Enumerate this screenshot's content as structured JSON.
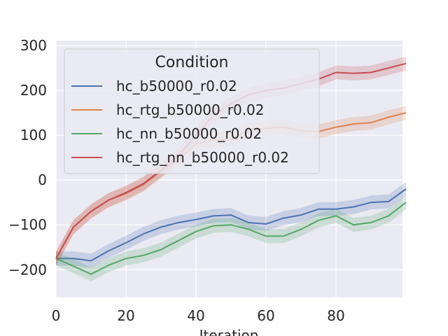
{
  "chart_data": {
    "type": "line",
    "title": "",
    "xlabel": "Iteration",
    "ylabel": "",
    "xlim": [
      0,
      99
    ],
    "ylim": [
      -262,
      311
    ],
    "xticks": [
      0,
      20,
      40,
      60,
      80
    ],
    "yticks": [
      -200,
      -100,
      0,
      100,
      200,
      300
    ],
    "grid": true,
    "legend": {
      "title": "Condition",
      "placement": "upper-left"
    },
    "x_step": 5,
    "series": [
      {
        "name": "hc_b50000_r0.02",
        "color": "#4c72b0",
        "values": [
          -175,
          -175,
          -180,
          -158,
          -140,
          -120,
          -105,
          -95,
          -88,
          -80,
          -78,
          -95,
          -98,
          -85,
          -78,
          -65,
          -65,
          -60,
          -50,
          -48,
          -20
        ]
      },
      {
        "name": "hc_rtg_b50000_r0.02",
        "color": "#dd8452",
        "values": [
          -175,
          -105,
          -70,
          -45,
          -30,
          -10,
          20,
          45,
          80,
          90,
          90,
          110,
          115,
          118,
          110,
          108,
          118,
          125,
          128,
          140,
          150
        ]
      },
      {
        "name": "hc_nn_b50000_r0.02",
        "color": "#55a868",
        "values": [
          -175,
          -192,
          -210,
          -190,
          -175,
          -168,
          -155,
          -135,
          -115,
          -102,
          -100,
          -110,
          -125,
          -125,
          -110,
          -90,
          -80,
          -100,
          -95,
          -80,
          -50
        ]
      },
      {
        "name": "hc_rtg_nn_b50000_r0.02",
        "color": "#c44e52",
        "values": [
          -175,
          -105,
          -70,
          -45,
          -28,
          -8,
          22,
          55,
          100,
          145,
          170,
          190,
          200,
          205,
          215,
          225,
          240,
          238,
          240,
          250,
          260
        ]
      }
    ]
  }
}
